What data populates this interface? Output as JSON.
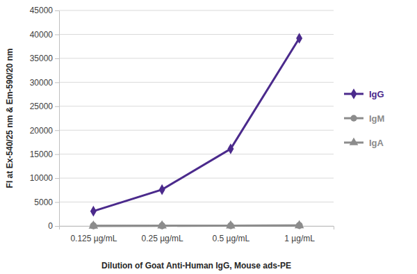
{
  "chart_data": {
    "type": "line",
    "x_label": "Dilution of Goat Anti-Human IgG, Mouse ads-PE",
    "y_label": "FI at Ex-540/25 nm & Em-590/20 nm",
    "categories": [
      "0.125 µg/mL",
      "0.25 µg/mL",
      "0.5 µg/mL",
      "1 µg/mL"
    ],
    "series": [
      {
        "name": "IgG",
        "color": "#4b2a8c",
        "marker": "diamond",
        "line_style": "solid",
        "values": [
          3100,
          7600,
          16100,
          39200
        ]
      },
      {
        "name": "IgM",
        "color": "#8c8c8c",
        "marker": "circle",
        "line_style": "solid",
        "values": [
          50,
          60,
          80,
          120
        ]
      },
      {
        "name": "IgA",
        "color": "#8c8c8c",
        "marker": "triangle",
        "line_style": "solid",
        "values": [
          40,
          50,
          70,
          100
        ]
      }
    ],
    "ylim": [
      0,
      45000
    ],
    "yticks": [
      0,
      5000,
      10000,
      15000,
      20000,
      25000,
      30000,
      35000,
      40000,
      45000
    ],
    "grid": true,
    "legend": "right"
  }
}
